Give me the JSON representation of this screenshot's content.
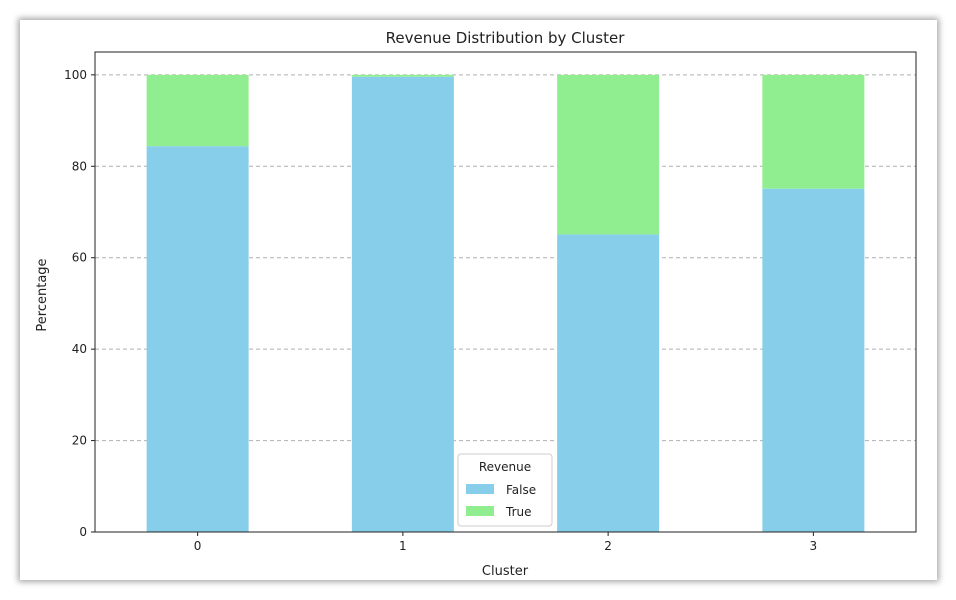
{
  "chart_data": {
    "type": "bar",
    "stacked": true,
    "title": "Revenue Distribution by Cluster",
    "xlabel": "Cluster",
    "ylabel": "Percentage",
    "categories": [
      "0",
      "1",
      "2",
      "3"
    ],
    "series": [
      {
        "name": "False",
        "color": "#87ceeb",
        "values": [
          84.4,
          99.6,
          65.1,
          75.1
        ]
      },
      {
        "name": "True",
        "color": "#90ee90",
        "values": [
          15.6,
          0.4,
          34.9,
          24.9
        ]
      }
    ],
    "ylim": [
      0,
      105
    ],
    "yticks": [
      0,
      20,
      40,
      60,
      80,
      100
    ],
    "grid": "y-dashed",
    "legend": {
      "title": "Revenue",
      "placement": "bottom-center"
    }
  }
}
